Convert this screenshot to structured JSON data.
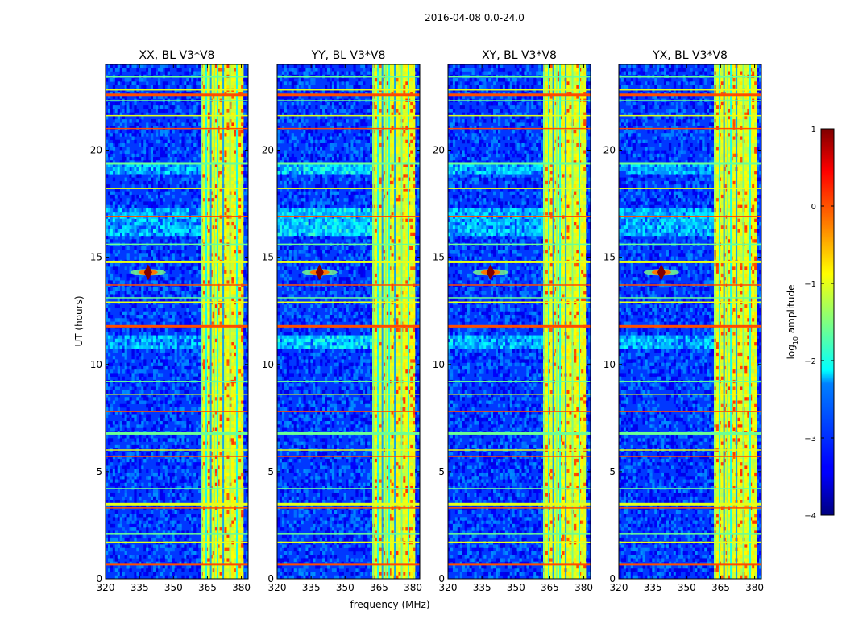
{
  "chart_data": {
    "type": "heatmap",
    "suptitle": "2016-04-08 0.0-24.0",
    "xlabel": "frequency (MHz)",
    "ylabel": "UT (hours)",
    "xlim": [
      320,
      383
    ],
    "ylim": [
      0,
      24
    ],
    "xticks": [
      320,
      335,
      350,
      365,
      380
    ],
    "yticks": [
      0,
      5,
      10,
      15,
      20
    ],
    "colorbar": {
      "label": "log10 amplitude",
      "label_main": "log",
      "label_sub": "10",
      "label_rest": " amplitude",
      "range": [
        -4,
        1
      ],
      "ticks": [
        "−4",
        "−3",
        "−2",
        "−1",
        "0",
        "1"
      ],
      "colormap": "jet"
    },
    "panels": [
      {
        "title": "XX, BL V3*V8",
        "pol": "XX"
      },
      {
        "title": "YY, BL V3*V8",
        "pol": "YY"
      },
      {
        "title": "XY, BL V3*V8",
        "pol": "XY"
      },
      {
        "title": "YX, BL V3*V8",
        "pol": "YX"
      }
    ],
    "features": {
      "background_level": -3.1,
      "rfi_band_mhz": [
        361.5,
        380.5
      ],
      "rfi_band_level": -1.0,
      "hot_channels_mhz": [
        362.5,
        364.5,
        366.5,
        368.0,
        369.5,
        372.0,
        375.0,
        378.0
      ],
      "narrowband_source": {
        "freq_mhz": 338.8,
        "ut_hours": 14.3,
        "level": 1.0
      },
      "rfi_hours": [
        0.7,
        1.7,
        2.1,
        3.3,
        3.5,
        4.2,
        5.7,
        6.0,
        6.8,
        7.8,
        8.6,
        9.2,
        11.8,
        12.9,
        13.1,
        13.7,
        14.8,
        15.6,
        16.9,
        18.2,
        19.4,
        21.0,
        21.6,
        22.3,
        22.6,
        22.8,
        23.4
      ],
      "diffuse_band_hours": [
        [
          10.8,
          11.4
        ],
        [
          16.0,
          17.2
        ],
        [
          18.9,
          19.3
        ]
      ]
    }
  }
}
